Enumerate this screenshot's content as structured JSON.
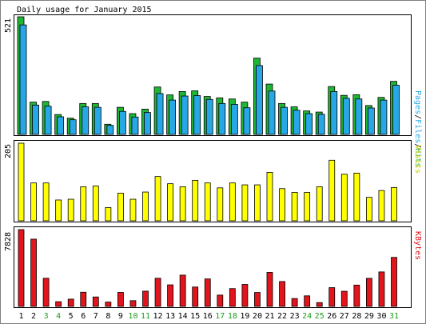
{
  "title": "Daily usage for January 2015",
  "colors": {
    "background": "#ffffff",
    "frame": "#5a5a5a",
    "border": "#000000",
    "hits": "#1fb634",
    "files": "#27a7e6",
    "visits": "#ffff00",
    "kbytes": "#e2141c",
    "weekday_label": "#000000",
    "weekend_label": "#1e9e1e"
  },
  "legend": {
    "pages": "Pages",
    "files": "Files",
    "hits": "Hits",
    "sep1": "/",
    "sep2": "/",
    "visits": "Visits",
    "kbytes": "KBytes"
  },
  "chart_data": [
    {
      "type": "bar",
      "panel": "hits-files-pages",
      "ymax_label": "521",
      "ylim": [
        0,
        521
      ],
      "categories": [
        "1",
        "2",
        "3",
        "4",
        "5",
        "6",
        "7",
        "8",
        "9",
        "10",
        "11",
        "12",
        "13",
        "14",
        "15",
        "16",
        "17",
        "18",
        "19",
        "20",
        "21",
        "22",
        "23",
        "24",
        "25",
        "26",
        "27",
        "28",
        "29",
        "30",
        "31"
      ],
      "weekend_days": [
        "3",
        "4",
        "10",
        "11",
        "17",
        "18",
        "24",
        "25",
        "31"
      ],
      "series": [
        {
          "name": "Hits",
          "values": [
            521,
            143,
            146,
            88,
            72,
            137,
            137,
            45,
            120,
            92,
            112,
            210,
            175,
            190,
            193,
            168,
            162,
            157,
            143,
            338,
            223,
            137,
            122,
            104,
            99,
            212,
            173,
            176,
            128,
            164,
            235
          ]
        },
        {
          "name": "Files",
          "values": [
            485,
            130,
            125,
            78,
            65,
            122,
            120,
            40,
            102,
            77,
            97,
            181,
            152,
            170,
            172,
            155,
            137,
            133,
            118,
            305,
            192,
            120,
            107,
            92,
            89,
            190,
            160,
            157,
            117,
            152,
            218
          ]
        }
      ]
    },
    {
      "type": "bar",
      "panel": "visits",
      "ymax_label": "205",
      "ylim": [
        0,
        205
      ],
      "categories": [
        "1",
        "2",
        "3",
        "4",
        "5",
        "6",
        "7",
        "8",
        "9",
        "10",
        "11",
        "12",
        "13",
        "14",
        "15",
        "16",
        "17",
        "18",
        "19",
        "20",
        "21",
        "22",
        "23",
        "24",
        "25",
        "26",
        "27",
        "28",
        "29",
        "30",
        "31"
      ],
      "series": [
        {
          "name": "Visits",
          "values": [
            205,
            100,
            100,
            55,
            57,
            90,
            92,
            35,
            73,
            57,
            76,
            117,
            98,
            90,
            107,
            100,
            87,
            100,
            95,
            95,
            128,
            85,
            75,
            75,
            90,
            160,
            123,
            126,
            62,
            80,
            88
          ]
        }
      ]
    },
    {
      "type": "bar",
      "panel": "kbytes",
      "ymax_label": "7828",
      "ylim": [
        0,
        7828
      ],
      "categories": [
        "1",
        "2",
        "3",
        "4",
        "5",
        "6",
        "7",
        "8",
        "9",
        "10",
        "11",
        "12",
        "13",
        "14",
        "15",
        "16",
        "17",
        "18",
        "19",
        "20",
        "21",
        "22",
        "23",
        "24",
        "25",
        "26",
        "27",
        "28",
        "29",
        "30",
        "31"
      ],
      "series": [
        {
          "name": "KBytes",
          "values": [
            7828,
            6854,
            2870,
            480,
            742,
            1446,
            963,
            444,
            1428,
            586,
            1555,
            2870,
            2197,
            3188,
            1976,
            2803,
            1154,
            1817,
            2243,
            1421,
            3471,
            2538,
            803,
            1077,
            389,
            1914,
            1545,
            2173,
            2862,
            3516,
            4998
          ]
        }
      ]
    }
  ]
}
